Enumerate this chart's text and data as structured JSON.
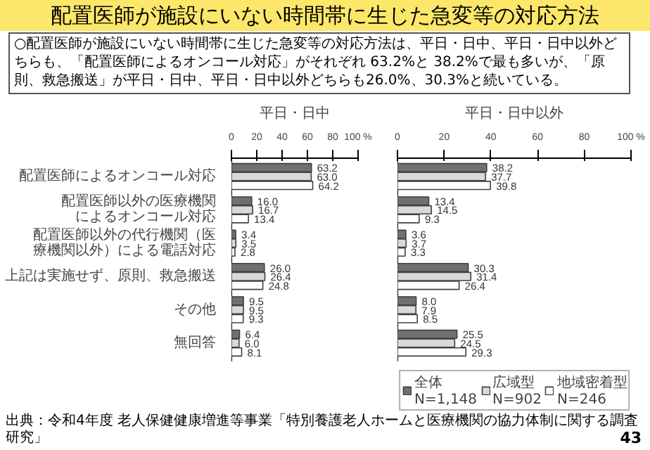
{
  "chart_data": [
    {
      "type": "bar",
      "orientation": "horizontal",
      "title": "配置医師が施設にいない時間帯に生じた急変等の対応方法",
      "subtitle": "平日・日中",
      "annotations": [
        "○配置医師が施設にいない時間帯に生じた急変等の対応方法は、平日・日中、平日・日中以外どちらも、「配置医師によるオンコール対応」がそれぞれ 63.2%と 38.2%で最も多いが、「原則、救急搬送」が平日・日中、平日・日中以外どちらも26.0%、30.3%と続いている。"
      ],
      "categories": [
        "配置医師によるオンコール対応",
        "配置医師以外の医療機関によるオンコール対応",
        "配置医師以外の代行機関（医療機関以外）による電話対応",
        "上記は実施せず、原則、救急搬送",
        "その他",
        "無回答"
      ],
      "series": [
        {
          "color": "#707070",
          "values": [
            63.2,
            16.0,
            3.4,
            26.0,
            9.5,
            6.4
          ],
          "value_labels": [
            "63.2",
            "16.0",
            "3.4",
            "26.0",
            "9.5",
            "6.4"
          ]
        },
        {
          "color": "#d9d9d9",
          "values": [
            63.0,
            16.7,
            3.5,
            26.4,
            9.5,
            6.0
          ],
          "value_labels": [
            "63.0",
            "16.7",
            "3.5",
            "26.4",
            "9.5",
            "6.0"
          ]
        },
        {
          "color": "#ffffff",
          "values": [
            64.2,
            13.4,
            2.8,
            24.8,
            9.3,
            8.1
          ],
          "value_labels": [
            "64.2",
            "13.4",
            "2.8",
            "24.8",
            "9.3",
            "8.1"
          ]
        }
      ],
      "xlim": [
        0,
        100
      ],
      "xticks": [
        0,
        20,
        40,
        60,
        80,
        {
          "value": 100,
          "label": "100 %"
        }
      ],
      "grid": false,
      "legend": false
    },
    {
      "type": "bar",
      "orientation": "horizontal",
      "subtitle": "平日・日中以外",
      "annotations": [
        "出典：令和4年度 老人保健健康増進等事業「特別養護老人ホームと医療機関の協力体制に関する調査研究」",
        "43"
      ],
      "categories": [
        "配置医師によるオンコール対応",
        "配置医師以外の医療機関によるオンコール対応",
        "配置医師以外の代行機関（医療機関以外）による電話対応",
        "上記は実施せず、原則、救急搬送",
        "その他",
        "無回答"
      ],
      "series": [
        {
          "name": "全体\nN=1,148",
          "color": "#707070",
          "values": [
            38.2,
            13.4,
            3.6,
            30.3,
            8.0,
            25.5
          ],
          "value_labels": [
            "38.2",
            "13.4",
            "3.6",
            "30.3",
            "8.0",
            "25.5"
          ]
        },
        {
          "name": "広域型\nN=902",
          "color": "#d9d9d9",
          "values": [
            37.7,
            14.5,
            3.7,
            31.4,
            7.9,
            24.5
          ],
          "value_labels": [
            "37.7",
            "14.5",
            "3.7",
            "31.4",
            "7.9",
            "24.5"
          ]
        },
        {
          "name": "地域密着型\nN=246",
          "color": "#ffffff",
          "values": [
            39.8,
            9.3,
            3.3,
            26.4,
            8.5,
            29.3
          ],
          "value_labels": [
            "39.8",
            "9.3",
            "3.3",
            "26.4",
            "8.5",
            "29.3"
          ]
        }
      ],
      "xlim": [
        0,
        100
      ],
      "xticks": [
        0,
        20,
        40,
        60,
        80,
        {
          "value": 100,
          "label": "100 %"
        }
      ],
      "grid": false,
      "legend": "bottom right",
      "tick_labels": "x"
    }
  ]
}
